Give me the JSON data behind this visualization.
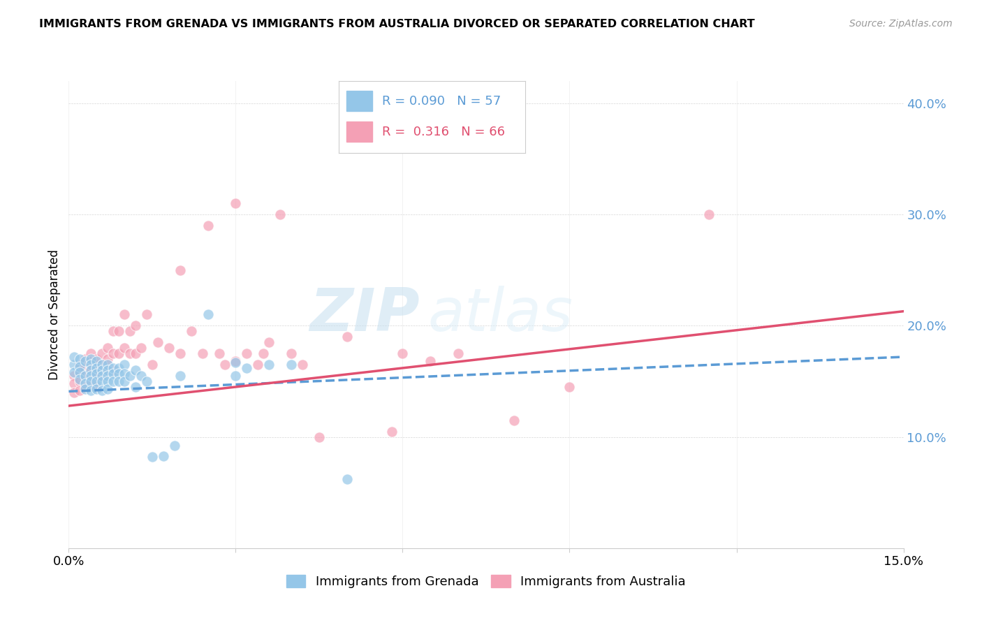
{
  "title": "IMMIGRANTS FROM GRENADA VS IMMIGRANTS FROM AUSTRALIA DIVORCED OR SEPARATED CORRELATION CHART",
  "source": "Source: ZipAtlas.com",
  "ylabel_label": "Divorced or Separated",
  "xlim": [
    0.0,
    0.15
  ],
  "ylim": [
    0.0,
    0.42
  ],
  "ytick_labels": [
    "10.0%",
    "20.0%",
    "30.0%",
    "40.0%"
  ],
  "ytick_positions": [
    0.1,
    0.2,
    0.3,
    0.4
  ],
  "grenada_color": "#94c6e8",
  "australia_color": "#f4a0b5",
  "grenada_line_color": "#5b9bd5",
  "australia_line_color": "#e05070",
  "grenada_R": 0.09,
  "grenada_N": 57,
  "australia_R": 0.316,
  "australia_N": 66,
  "legend_grenada": "Immigrants from Grenada",
  "legend_australia": "Immigrants from Australia",
  "watermark_zip": "ZIP",
  "watermark_atlas": "atlas",
  "grenada_line_x0": 0.0,
  "grenada_line_y0": 0.141,
  "grenada_line_x1": 0.15,
  "grenada_line_y1": 0.172,
  "australia_line_x0": 0.0,
  "australia_line_y0": 0.128,
  "australia_line_x1": 0.15,
  "australia_line_y1": 0.213,
  "grenada_scatter_x": [
    0.001,
    0.001,
    0.001,
    0.002,
    0.002,
    0.002,
    0.002,
    0.003,
    0.003,
    0.003,
    0.003,
    0.004,
    0.004,
    0.004,
    0.004,
    0.004,
    0.004,
    0.005,
    0.005,
    0.005,
    0.005,
    0.005,
    0.006,
    0.006,
    0.006,
    0.006,
    0.006,
    0.007,
    0.007,
    0.007,
    0.007,
    0.007,
    0.008,
    0.008,
    0.008,
    0.009,
    0.009,
    0.009,
    0.01,
    0.01,
    0.01,
    0.011,
    0.012,
    0.012,
    0.013,
    0.014,
    0.015,
    0.017,
    0.019,
    0.02,
    0.025,
    0.03,
    0.03,
    0.032,
    0.036,
    0.04,
    0.05
  ],
  "grenada_scatter_y": [
    0.165,
    0.172,
    0.158,
    0.17,
    0.163,
    0.158,
    0.152,
    0.168,
    0.155,
    0.148,
    0.143,
    0.17,
    0.165,
    0.16,
    0.155,
    0.15,
    0.142,
    0.168,
    0.162,
    0.157,
    0.15,
    0.143,
    0.165,
    0.16,
    0.155,
    0.15,
    0.142,
    0.165,
    0.16,
    0.155,
    0.15,
    0.143,
    0.162,
    0.157,
    0.15,
    0.162,
    0.157,
    0.15,
    0.165,
    0.157,
    0.15,
    0.155,
    0.16,
    0.145,
    0.155,
    0.15,
    0.082,
    0.083,
    0.092,
    0.155,
    0.21,
    0.155,
    0.167,
    0.162,
    0.165,
    0.165,
    0.062
  ],
  "australia_scatter_x": [
    0.001,
    0.001,
    0.001,
    0.002,
    0.002,
    0.002,
    0.002,
    0.003,
    0.003,
    0.003,
    0.003,
    0.004,
    0.004,
    0.004,
    0.004,
    0.005,
    0.005,
    0.005,
    0.005,
    0.006,
    0.006,
    0.006,
    0.007,
    0.007,
    0.007,
    0.008,
    0.008,
    0.008,
    0.009,
    0.009,
    0.01,
    0.01,
    0.011,
    0.011,
    0.012,
    0.012,
    0.013,
    0.014,
    0.015,
    0.016,
    0.018,
    0.02,
    0.02,
    0.022,
    0.024,
    0.025,
    0.027,
    0.028,
    0.03,
    0.03,
    0.032,
    0.034,
    0.035,
    0.036,
    0.038,
    0.04,
    0.042,
    0.045,
    0.05,
    0.058,
    0.06,
    0.065,
    0.07,
    0.08,
    0.09,
    0.115
  ],
  "australia_scatter_y": [
    0.155,
    0.148,
    0.14,
    0.165,
    0.158,
    0.15,
    0.142,
    0.17,
    0.162,
    0.155,
    0.145,
    0.175,
    0.168,
    0.16,
    0.148,
    0.17,
    0.162,
    0.155,
    0.145,
    0.175,
    0.165,
    0.155,
    0.18,
    0.17,
    0.16,
    0.195,
    0.175,
    0.16,
    0.195,
    0.175,
    0.21,
    0.18,
    0.195,
    0.175,
    0.2,
    0.175,
    0.18,
    0.21,
    0.165,
    0.185,
    0.18,
    0.25,
    0.175,
    0.195,
    0.175,
    0.29,
    0.175,
    0.165,
    0.31,
    0.168,
    0.175,
    0.165,
    0.175,
    0.185,
    0.3,
    0.175,
    0.165,
    0.1,
    0.19,
    0.105,
    0.175,
    0.168,
    0.175,
    0.115,
    0.145,
    0.3
  ]
}
